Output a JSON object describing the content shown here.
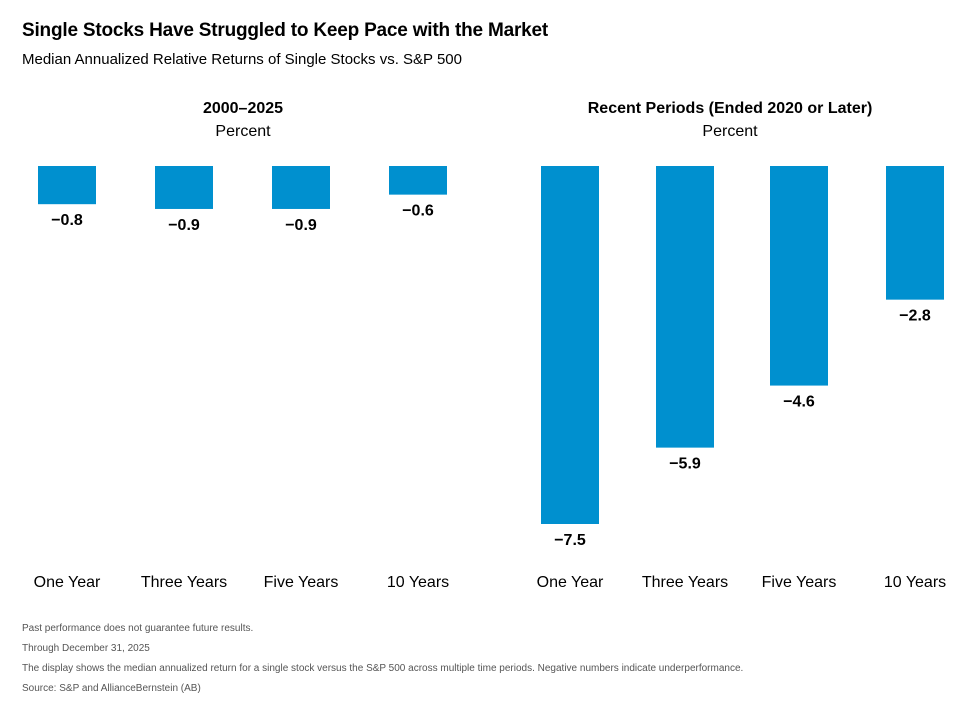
{
  "title": "Single Stocks Have Struggled to Keep Pace with the Market",
  "subtitle": "Median Annualized Relative Returns of Single Stocks vs. S&P 500",
  "colors": {
    "bar": "#0090cf",
    "text": "#000000",
    "note": "#555555"
  },
  "chart_data": [
    {
      "type": "bar",
      "title": "2000–2025",
      "ylabel": "Percent",
      "categories": [
        "One Year",
        "Three Years",
        "Five Years",
        "10 Years"
      ],
      "values": [
        -0.8,
        -0.9,
        -0.9,
        -0.6
      ],
      "value_labels": [
        "−0.8",
        "−0.9",
        "−0.9",
        "−0.6"
      ],
      "ylim": [
        -7.5,
        0
      ],
      "grid": false
    },
    {
      "type": "bar",
      "title": "Recent Periods (Ended 2020 or Later)",
      "ylabel": "Percent",
      "categories": [
        "One Year",
        "Three Years",
        "Five Years",
        "10 Years"
      ],
      "values": [
        -7.5,
        -5.9,
        -4.6,
        -2.8
      ],
      "value_labels": [
        "−7.5",
        "−5.9",
        "−4.6",
        "−2.8"
      ],
      "ylim": [
        -7.5,
        0
      ],
      "grid": false
    }
  ],
  "footnotes": [
    "Past performance does not guarantee future results.",
    "Through December 31, 2025",
    "The display shows the median annualized return for a single stock versus the S&P 500 across multiple time periods. Negative numbers indicate underperformance.",
    "Source: S&P and AllianceBernstein (AB)"
  ]
}
